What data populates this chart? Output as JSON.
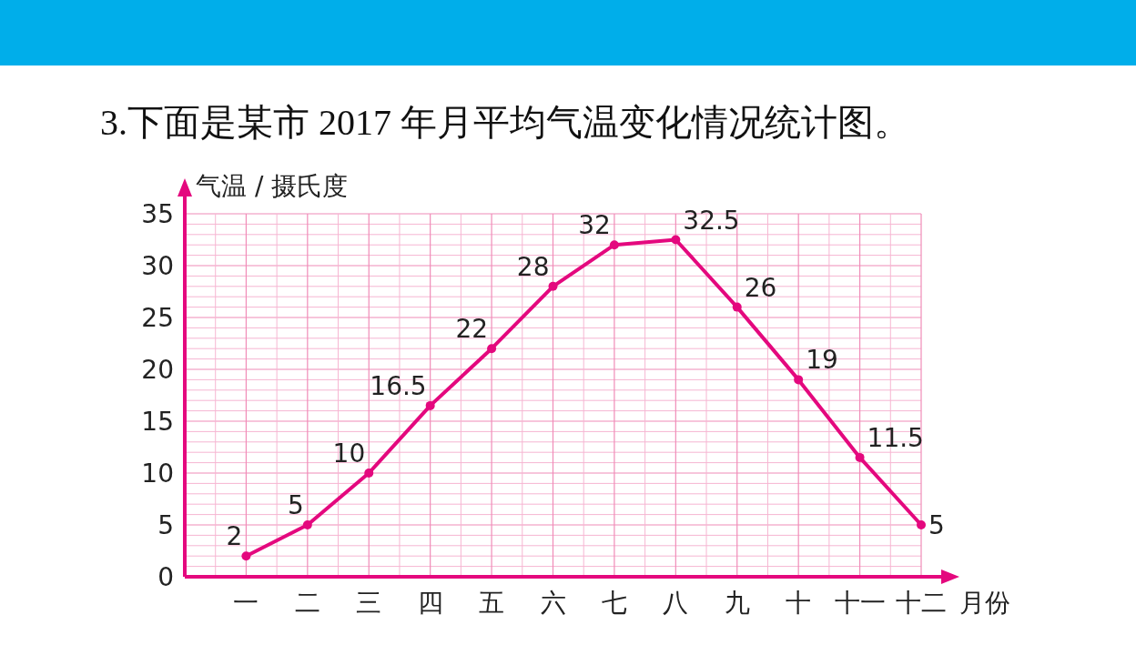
{
  "chart_data": {
    "type": "line",
    "title": "3.下面是某市 2017 年月平均气温变化情况统计图。",
    "xlabel": "月份",
    "ylabel": "气温 / 摄氏度",
    "categories": [
      "一",
      "二",
      "三",
      "四",
      "五",
      "六",
      "七",
      "八",
      "九",
      "十",
      "十一",
      "十二"
    ],
    "series": [
      {
        "color": "#e4087e",
        "values": [
          2,
          5,
          10,
          16.5,
          22,
          28,
          32,
          32.5,
          26,
          19,
          11.5,
          5
        ]
      }
    ],
    "ylim": [
      0,
      35
    ],
    "yticks": [
      0,
      5,
      10,
      15,
      20,
      25,
      30,
      35
    ],
    "grid": true,
    "data_labels": true,
    "marker": "circle",
    "line_style": "solid"
  }
}
